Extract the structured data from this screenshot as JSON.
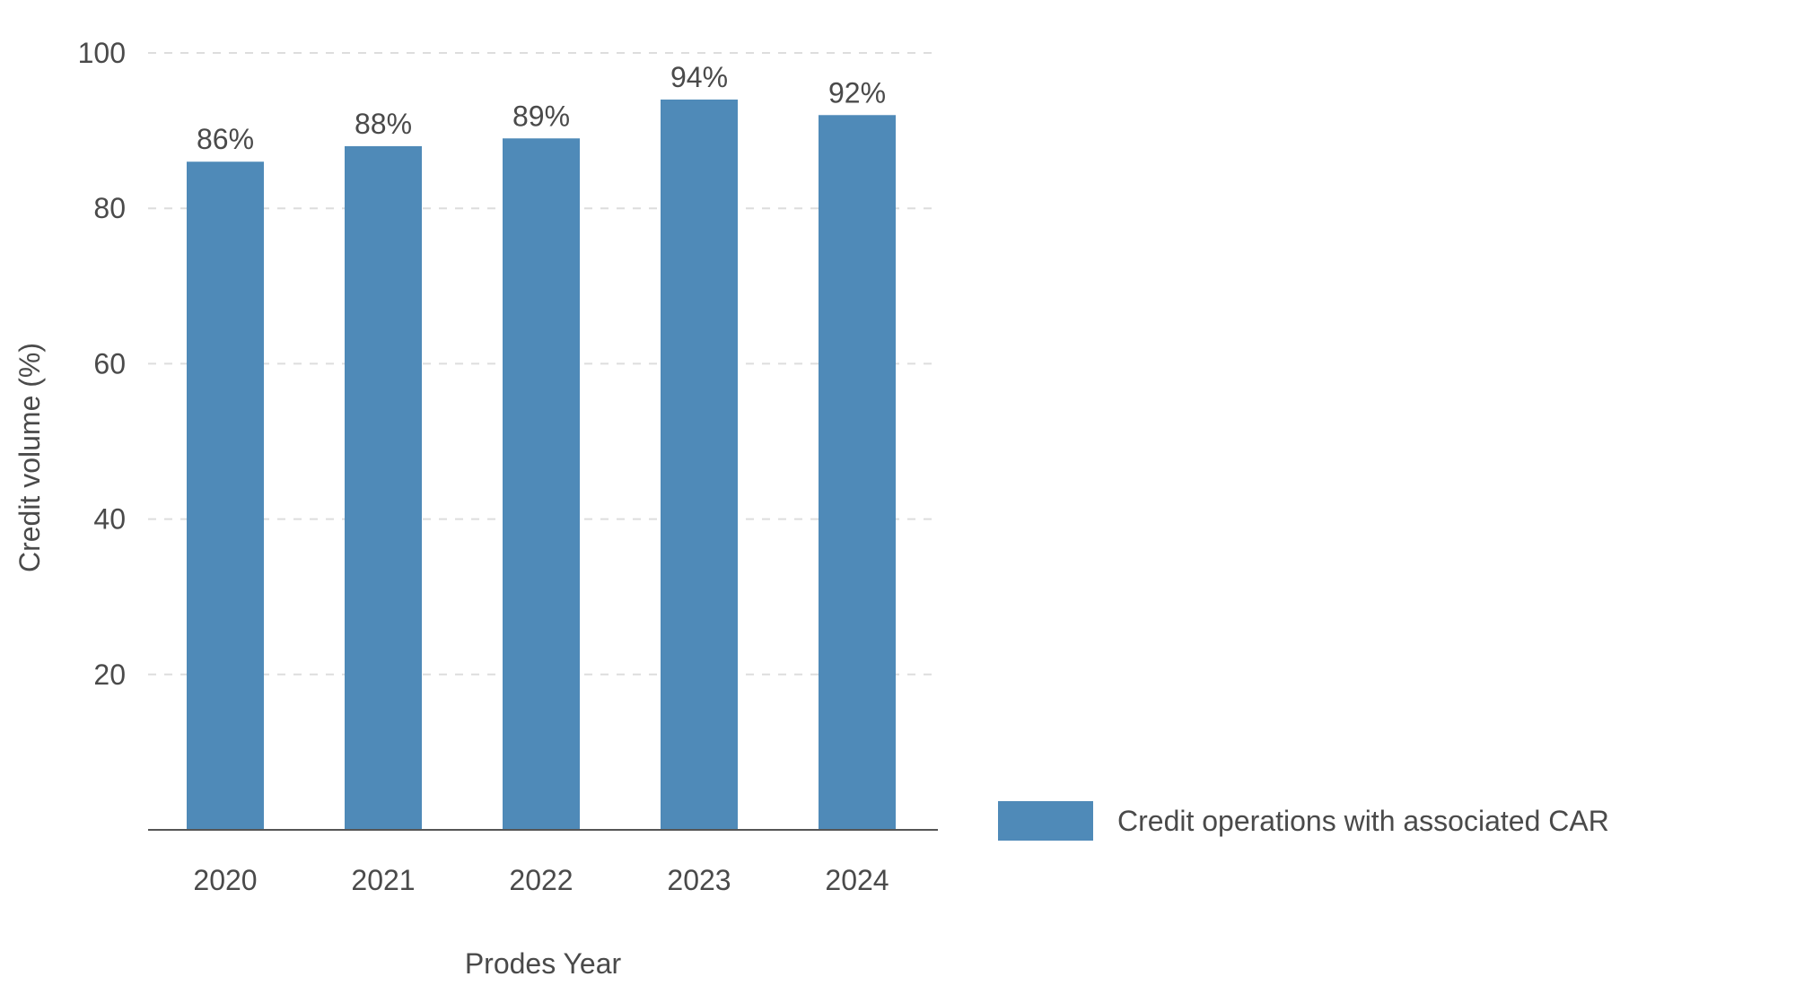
{
  "chart_data": {
    "type": "bar",
    "title": "",
    "xlabel": "Prodes Year",
    "ylabel": "Credit volume (%)",
    "categories": [
      "2020",
      "2021",
      "2022",
      "2023",
      "2024"
    ],
    "series": [
      {
        "name": "Credit operations with associated CAR",
        "values": [
          86,
          88,
          89,
          94,
          92
        ],
        "labels": [
          "86%",
          "88%",
          "89%",
          "94%",
          "92%"
        ],
        "color": "#4f8ab8"
      }
    ],
    "ylim": [
      0,
      100
    ],
    "yticks": [
      20,
      40,
      60,
      80,
      100
    ],
    "ytick_labels": [
      "20",
      "40",
      "60",
      "80",
      "100"
    ],
    "grid": "horizontal dashed",
    "legend_position": "right"
  },
  "colors": {
    "bar": "#4f8ab8",
    "grid": "#dddddd",
    "axis": "#555555",
    "text": "#4a4a4a"
  }
}
